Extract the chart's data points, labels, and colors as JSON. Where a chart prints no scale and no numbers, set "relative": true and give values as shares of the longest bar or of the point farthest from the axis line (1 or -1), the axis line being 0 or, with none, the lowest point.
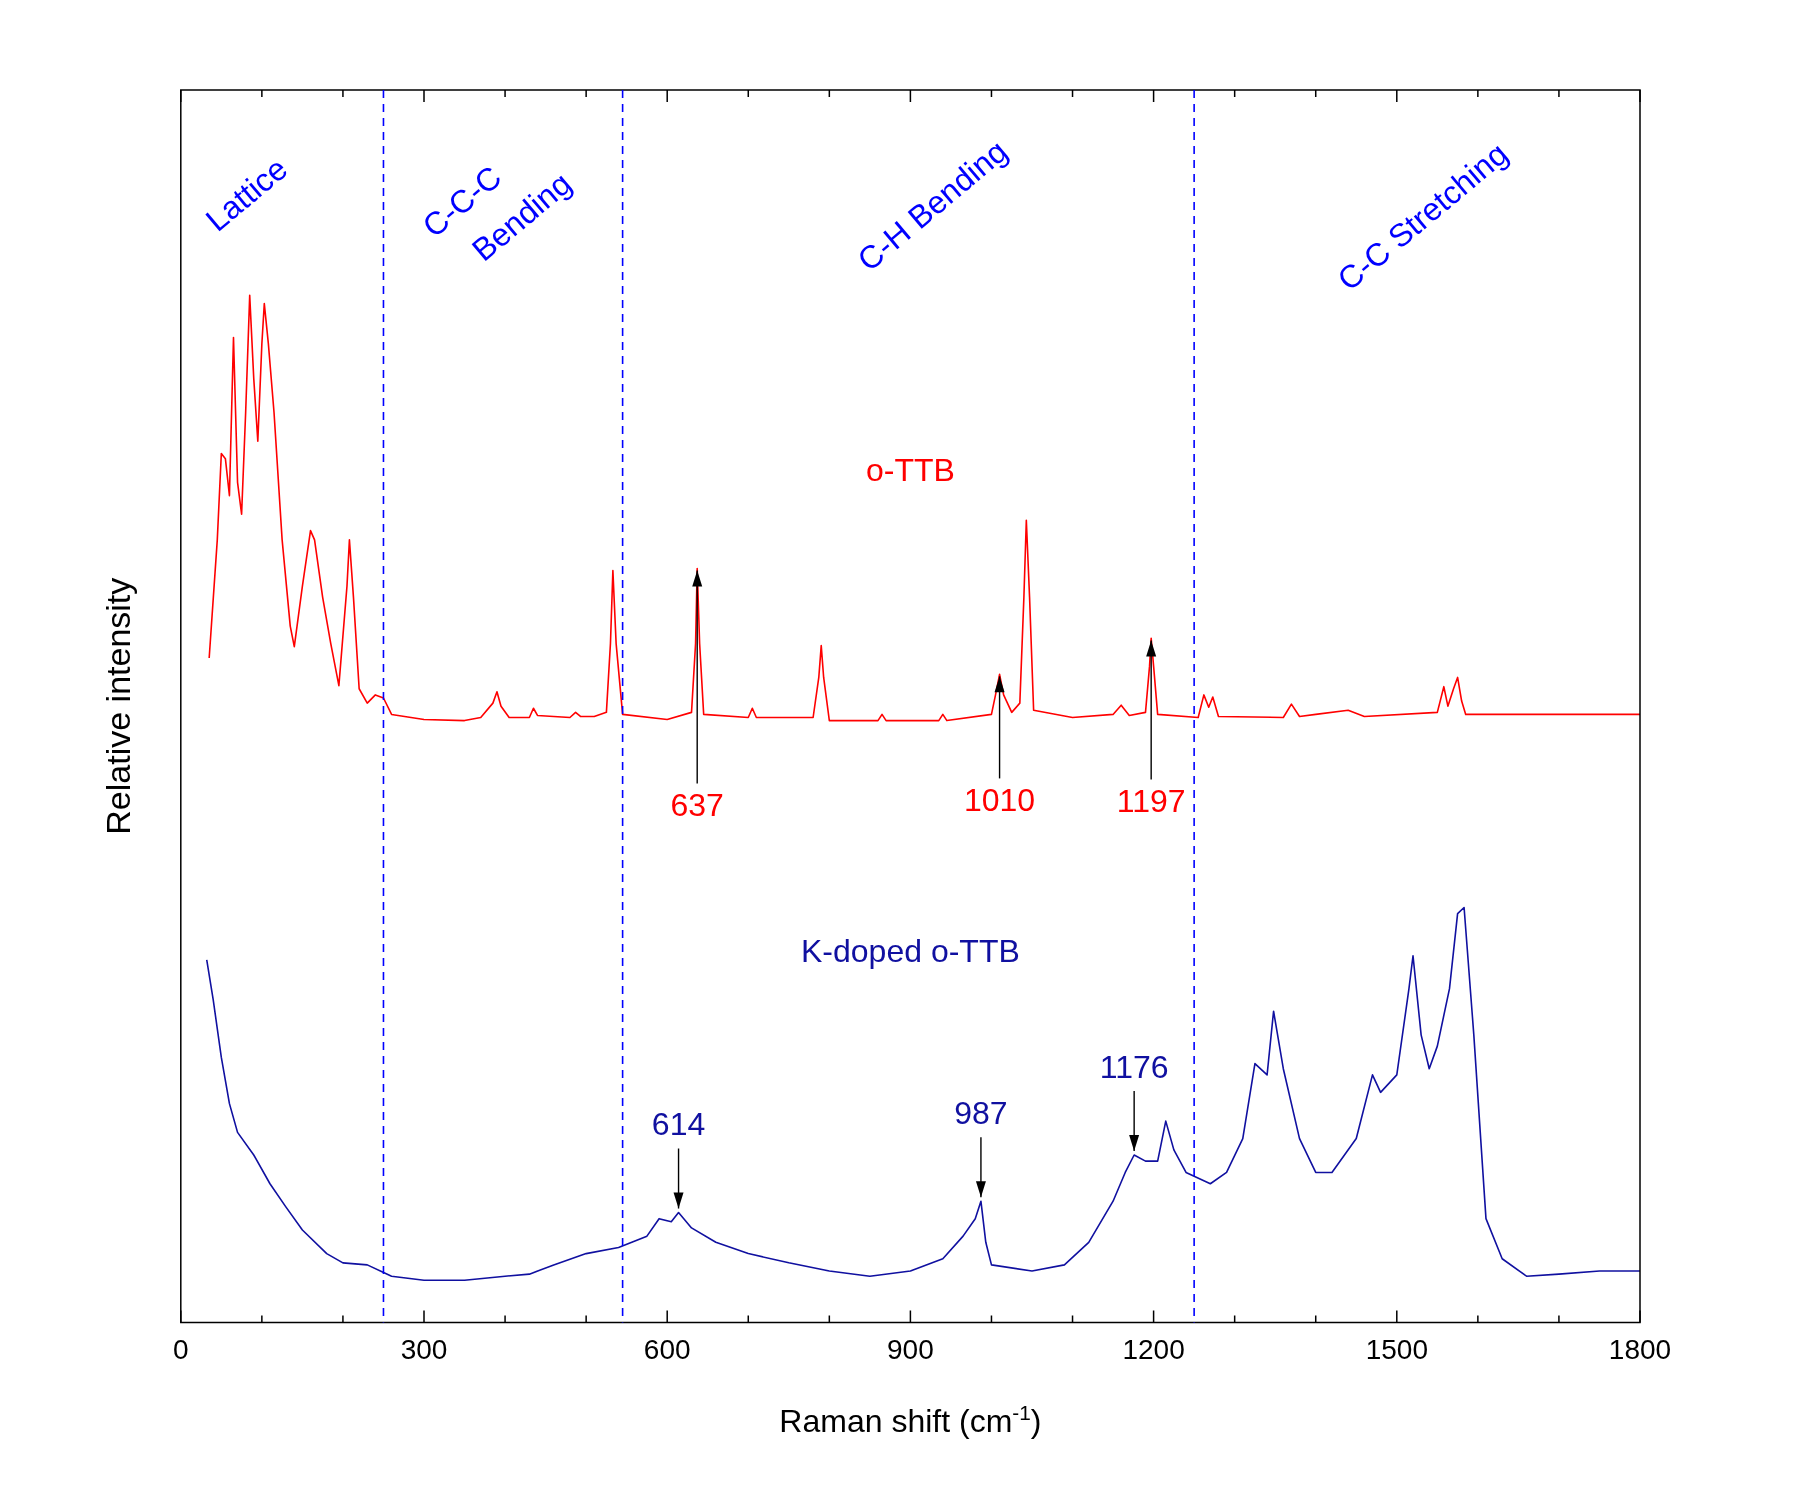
{
  "chart_data": {
    "type": "line",
    "relative": true,
    "xlabel": "Raman shift (cm$^{-1}$)",
    "ylabel": "Relative intensity",
    "xlim": [
      0,
      1800
    ],
    "xticks": [
      0,
      300,
      600,
      900,
      1200,
      1500,
      1800
    ],
    "grid": false,
    "legend": false,
    "series": [
      {
        "name": "o-TTB",
        "color": "#ff0000",
        "x": [
          35,
          45,
          50,
          55,
          60,
          65,
          70,
          75,
          80,
          85,
          90,
          95,
          100,
          103,
          108,
          115,
          125,
          135,
          140,
          150,
          160,
          165,
          175,
          185,
          195,
          205,
          208,
          213,
          220,
          230,
          240,
          250,
          260,
          300,
          350,
          370,
          385,
          390,
          395,
          405,
          430,
          435,
          440,
          480,
          487,
          493,
          510,
          525,
          530,
          533,
          537,
          545,
          600,
          630,
          635,
          637,
          640,
          645,
          700,
          705,
          710,
          780,
          787,
          790,
          793,
          800,
          860,
          865,
          870,
          935,
          940,
          945,
          1000,
          1005,
          1010,
          1015,
          1025,
          1035,
          1040,
          1043,
          1047,
          1052,
          1100,
          1150,
          1160,
          1170,
          1190,
          1195,
          1197,
          1200,
          1205,
          1255,
          1262,
          1268,
          1273,
          1280,
          1360,
          1370,
          1380,
          1400,
          1440,
          1460,
          1550,
          1558,
          1563,
          1570,
          1575,
          1580,
          1585,
          1650,
          1800
        ],
        "values": [
          0.647,
          0.762,
          0.846,
          0.841,
          0.805,
          0.959,
          0.818,
          0.787,
          0.886,
          1.0,
          0.919,
          0.858,
          0.953,
          0.992,
          0.953,
          0.886,
          0.762,
          0.678,
          0.658,
          0.717,
          0.771,
          0.762,
          0.706,
          0.661,
          0.62,
          0.717,
          0.762,
          0.706,
          0.617,
          0.603,
          0.611,
          0.608,
          0.592,
          0.587,
          0.586,
          0.589,
          0.603,
          0.614,
          0.6,
          0.589,
          0.589,
          0.598,
          0.591,
          0.589,
          0.594,
          0.59,
          0.59,
          0.594,
          0.661,
          0.732,
          0.661,
          0.592,
          0.587,
          0.594,
          0.661,
          0.734,
          0.661,
          0.592,
          0.589,
          0.598,
          0.589,
          0.589,
          0.628,
          0.659,
          0.628,
          0.586,
          0.586,
          0.592,
          0.586,
          0.586,
          0.592,
          0.586,
          0.592,
          0.611,
          0.631,
          0.611,
          0.594,
          0.603,
          0.706,
          0.781,
          0.706,
          0.596,
          0.589,
          0.592,
          0.601,
          0.591,
          0.594,
          0.639,
          0.666,
          0.639,
          0.592,
          0.589,
          0.611,
          0.599,
          0.609,
          0.59,
          0.589,
          0.602,
          0.59,
          0.592,
          0.596,
          0.59,
          0.594,
          0.619,
          0.6,
          0.617,
          0.628,
          0.605,
          0.592,
          0.592,
          0.592
        ]
      },
      {
        "name": "K-doped o-TTB",
        "color": "#1010a0",
        "x": [
          32,
          40,
          50,
          60,
          70,
          90,
          110,
          130,
          150,
          180,
          200,
          230,
          260,
          300,
          350,
          400,
          430,
          460,
          500,
          540,
          575,
          590,
          605,
          614,
          630,
          660,
          700,
          750,
          800,
          850,
          900,
          940,
          965,
          980,
          987,
          993,
          1000,
          1050,
          1090,
          1120,
          1150,
          1165,
          1176,
          1190,
          1205,
          1215,
          1225,
          1240,
          1270,
          1290,
          1310,
          1325,
          1340,
          1348,
          1360,
          1380,
          1400,
          1420,
          1450,
          1470,
          1480,
          1500,
          1515,
          1520,
          1530,
          1540,
          1550,
          1565,
          1575,
          1583,
          1595,
          1610,
          1630,
          1660,
          1700,
          1750,
          1800
        ],
        "values": [
          0.353,
          0.314,
          0.258,
          0.213,
          0.185,
          0.163,
          0.135,
          0.112,
          0.09,
          0.067,
          0.058,
          0.056,
          0.045,
          0.041,
          0.041,
          0.045,
          0.047,
          0.056,
          0.067,
          0.073,
          0.084,
          0.101,
          0.098,
          0.107,
          0.092,
          0.078,
          0.067,
          0.058,
          0.05,
          0.045,
          0.05,
          0.062,
          0.084,
          0.101,
          0.118,
          0.078,
          0.056,
          0.05,
          0.056,
          0.078,
          0.118,
          0.146,
          0.163,
          0.157,
          0.157,
          0.196,
          0.168,
          0.146,
          0.135,
          0.146,
          0.179,
          0.252,
          0.241,
          0.303,
          0.247,
          0.179,
          0.146,
          0.146,
          0.179,
          0.241,
          0.224,
          0.241,
          0.325,
          0.357,
          0.28,
          0.247,
          0.269,
          0.325,
          0.398,
          0.404,
          0.28,
          0.101,
          0.062,
          0.045,
          0.047,
          0.05,
          0.05
        ]
      }
    ],
    "ref_lines": [
      {
        "axis": "x",
        "value": 250,
        "color": "#0000ff",
        "line_style": "dashed"
      },
      {
        "axis": "x",
        "value": 545,
        "color": "#0000ff",
        "line_style": "dashed"
      },
      {
        "axis": "x",
        "value": 1250,
        "color": "#0000ff",
        "line_style": "dashed"
      }
    ],
    "annotations": [
      "Lattice",
      "C-C-C\nBending",
      "C-H Bending",
      "C-C Stretching",
      {
        "text": "637",
        "x": 637,
        "y": 0.734
      },
      {
        "text": "1010",
        "x": 1010,
        "y": 0.631
      },
      {
        "text": "1197",
        "x": 1197,
        "y": 0.666
      },
      {
        "text": "614",
        "x": 614,
        "y": 0.107
      },
      {
        "text": "987",
        "x": 987,
        "y": 0.118
      },
      {
        "text": "1176",
        "x": 1176,
        "y": 0.163
      }
    ]
  }
}
